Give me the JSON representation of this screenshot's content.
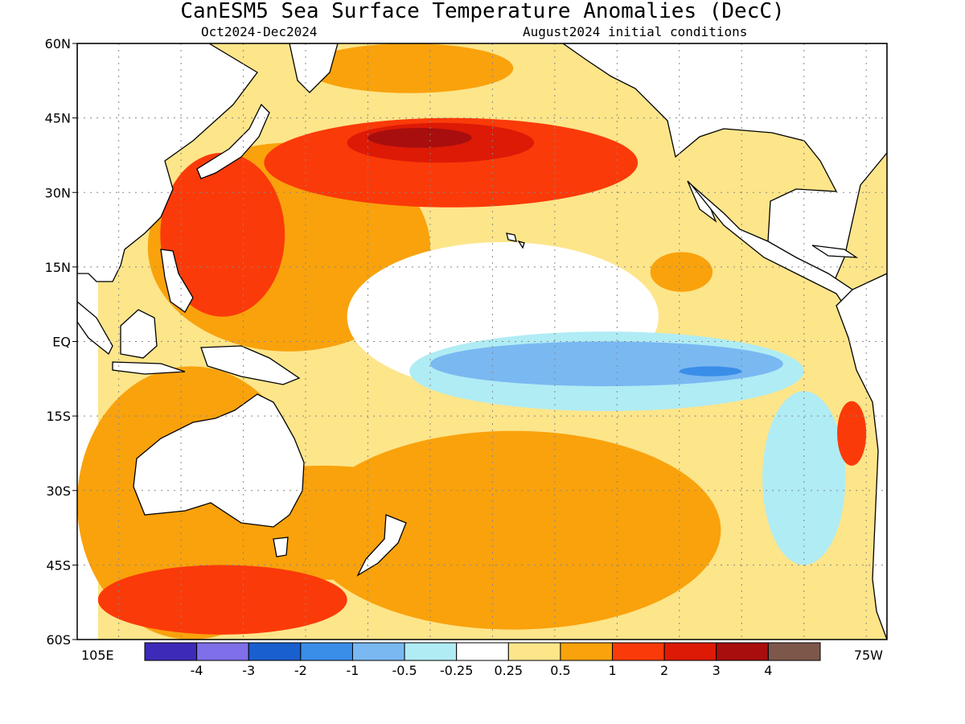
{
  "title": "CanESM5 Sea Surface Temperature Anomalies (DecC)",
  "subtitle_left": "Oct2024-Dec2024",
  "subtitle_right": "August2024 initial conditions",
  "map": {
    "lon_range": [
      95,
      290
    ],
    "lat_range": [
      -60,
      60
    ],
    "lat_labels": [
      "60N",
      "45N",
      "30N",
      "15N",
      "EQ",
      "15S",
      "30S",
      "45S",
      "60S"
    ],
    "lon_start_label": "105E",
    "lon_end_label": "75W",
    "grid": true
  },
  "colorbar": {
    "labels": [
      "-4",
      "-3",
      "-2",
      "-1",
      "-0.5",
      "-0.25",
      "0.25",
      "0.5",
      "1",
      "2",
      "3",
      "4"
    ],
    "colors": [
      "#3d2ab8",
      "#7f6fe8",
      "#1a5fce",
      "#3a8ee8",
      "#7ab8f2",
      "#b0ecf4",
      "#ffffff",
      "#fde58a",
      "#f9a20c",
      "#fb3a09",
      "#dc1a06",
      "#a80e0e",
      "#7e574b"
    ]
  },
  "chart_data": {
    "type": "heatmap",
    "variable": "Sea Surface Temperature Anomalies",
    "units": "DecC",
    "period": "Oct2024-Dec2024",
    "initial_conditions": "August2024",
    "levels": [
      -4,
      -3,
      -2,
      -1,
      -0.5,
      -0.25,
      0.25,
      0.5,
      1,
      2,
      3,
      4
    ],
    "regions": [
      {
        "lon": [
          100,
          290
        ],
        "lat": [
          -60,
          60
        ],
        "anomaly": 0.35
      },
      {
        "lon": [
          112,
          180
        ],
        "lat": [
          -2,
          40
        ],
        "anomaly": 0.75
      },
      {
        "lon": [
          160,
          235
        ],
        "lat": [
          -10,
          20
        ],
        "anomaly": 0.1
      },
      {
        "lon": [
          95,
          150
        ],
        "lat": [
          -60,
          -5
        ],
        "anomaly": 0.7
      },
      {
        "lon": [
          150,
          250
        ],
        "lat": [
          -58,
          -18
        ],
        "anomaly": 0.7
      },
      {
        "lon": [
          118,
          190
        ],
        "lat": [
          -48,
          -25
        ],
        "anomaly": 0.75
      },
      {
        "lon": [
          140,
          230
        ],
        "lat": [
          27,
          45
        ],
        "anomaly": 1.3
      },
      {
        "lon": [
          160,
          205
        ],
        "lat": [
          36,
          44
        ],
        "anomaly": 2.2
      },
      {
        "lon": [
          165,
          190
        ],
        "lat": [
          39,
          43
        ],
        "anomaly": 3.2
      },
      {
        "lon": [
          115,
          145
        ],
        "lat": [
          5,
          38
        ],
        "anomaly": 1.1
      },
      {
        "lon": [
          175,
          270
        ],
        "lat": [
          -14,
          2
        ],
        "anomaly": -0.35
      },
      {
        "lon": [
          180,
          265
        ],
        "lat": [
          -9,
          0
        ],
        "anomaly": -0.75
      },
      {
        "lon": [
          240,
          255
        ],
        "lat": [
          -7,
          -5
        ],
        "anomaly": -1.2
      },
      {
        "lon": [
          260,
          280
        ],
        "lat": [
          -45,
          -10
        ],
        "anomaly": -0.35
      },
      {
        "lon": [
          278,
          285
        ],
        "lat": [
          -25,
          -12
        ],
        "anomaly": 1.5
      },
      {
        "lon": [
          233,
          248
        ],
        "lat": [
          10,
          18
        ],
        "anomaly": 0.7
      },
      {
        "lon": [
          150,
          200
        ],
        "lat": [
          50,
          60
        ],
        "anomaly": 0.5
      },
      {
        "lon": [
          100,
          160
        ],
        "lat": [
          -59,
          -45
        ],
        "anomaly": 1.0
      }
    ]
  }
}
